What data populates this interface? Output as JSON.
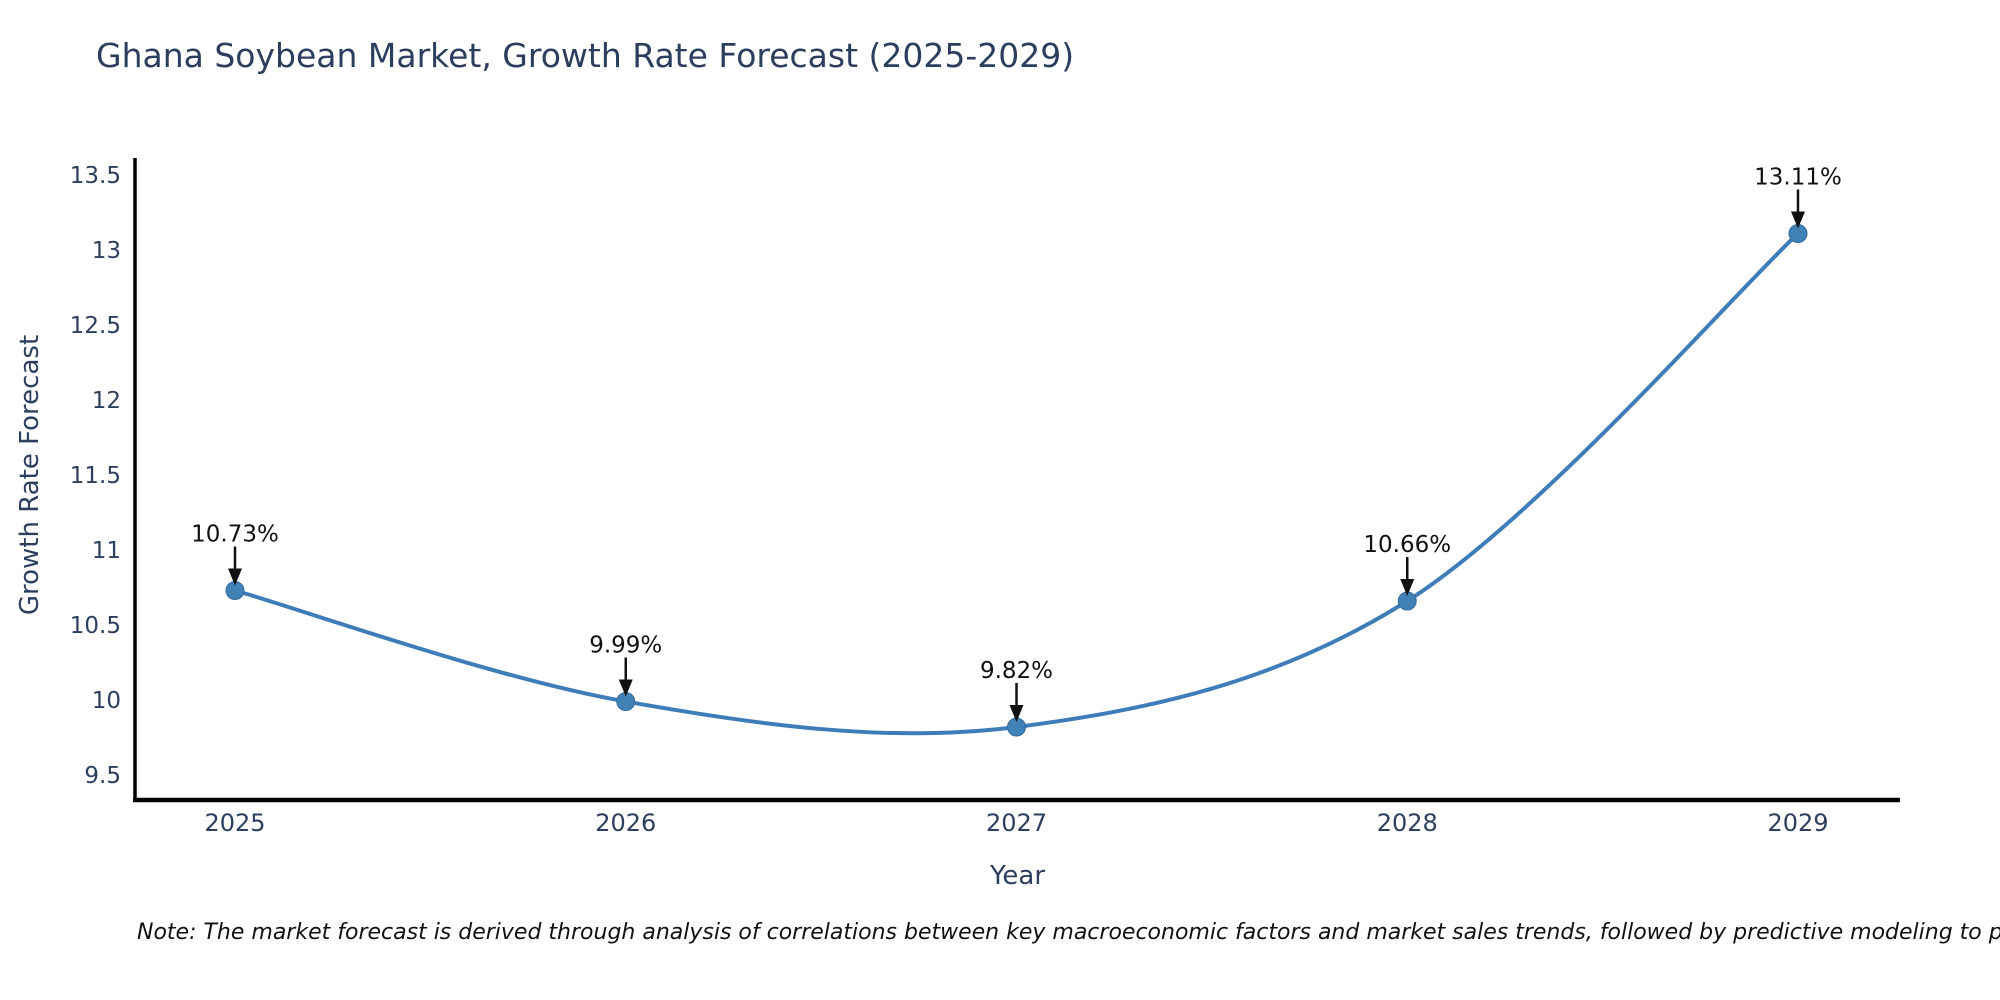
{
  "title": "Ghana Soybean Market, Growth Rate Forecast (2025-2029)",
  "note": "Note: The market forecast is derived through analysis of correlations between key macroeconomic factors and market sales trends, followed by predictive modeling to project future sal",
  "chart_data": {
    "type": "line",
    "line_shape": "spline",
    "title": "Ghana Soybean Market, Growth Rate Forecast (2025-2029)",
    "categories": [
      "2025",
      "2026",
      "2027",
      "2028",
      "2029"
    ],
    "x": [
      2025,
      2026,
      2027,
      2028,
      2029
    ],
    "series": [
      {
        "name": "Growth Rate Forecast",
        "values": [
          10.73,
          9.99,
          9.82,
          10.66,
          13.11
        ]
      }
    ],
    "point_labels": [
      "10.73%",
      "9.99%",
      "9.82%",
      "10.66%",
      "13.11%"
    ],
    "xlabel": "Year",
    "ylabel": "Growth Rate Forecast",
    "ylim": [
      9.33,
      13.6
    ],
    "ytick_labels": [
      "9.5",
      "10",
      "10.5",
      "11",
      "11.5",
      "12",
      "12.5",
      "13",
      "13.5"
    ],
    "grid": false,
    "legend": "none",
    "annotation_style": "black-arrow-down-to-point",
    "colors": {
      "line": "#3f7db8",
      "marker": "#4182b6",
      "marker_edge": "#31699e",
      "axis": "#000000",
      "tick_text": "#2d3f5e",
      "axis_title_text": "#2d3f5e",
      "title_text": "#2c3e5d",
      "annotation_text": "#111111",
      "background": "#ffffff"
    }
  }
}
